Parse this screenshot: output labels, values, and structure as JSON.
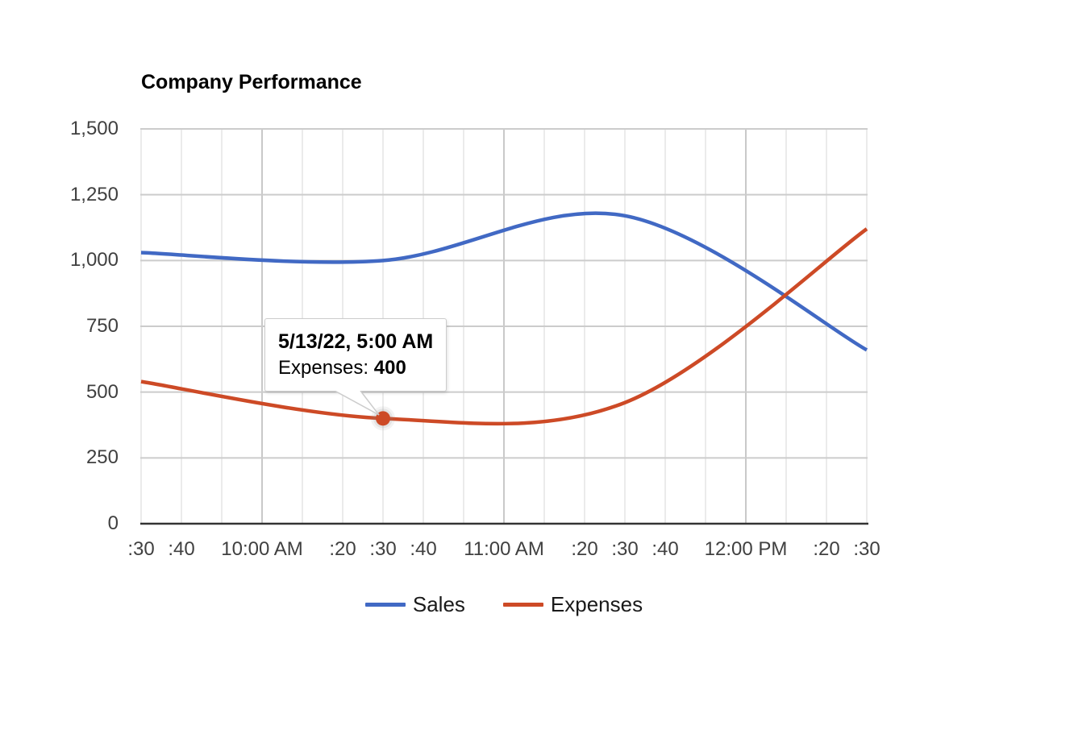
{
  "chart_data": {
    "type": "line",
    "title": "Company Performance",
    "curve": "smooth",
    "grid": true,
    "legend_position": "bottom",
    "ylim": [
      0,
      1500
    ],
    "x_axis": {
      "unit": "minutes",
      "range_minutes": [
        0,
        180
      ],
      "minor_gridline_step_minutes": 10,
      "major_gridline_minutes": [
        30,
        90,
        150
      ],
      "ticks": [
        {
          "label": ":30",
          "t": 0
        },
        {
          "label": ":40",
          "t": 10
        },
        {
          "label": "10:00 AM",
          "t": 30
        },
        {
          "label": ":20",
          "t": 50
        },
        {
          "label": ":30",
          "t": 60
        },
        {
          "label": ":40",
          "t": 70
        },
        {
          "label": "11:00 AM",
          "t": 90
        },
        {
          "label": ":20",
          "t": 110
        },
        {
          "label": ":30",
          "t": 120
        },
        {
          "label": ":40",
          "t": 130
        },
        {
          "label": "12:00 PM",
          "t": 150
        },
        {
          "label": ":20",
          "t": 170
        },
        {
          "label": ":30",
          "t": 180
        }
      ]
    },
    "y_axis": {
      "ticks": [
        {
          "label": "0",
          "v": 0
        },
        {
          "label": "250",
          "v": 250
        },
        {
          "label": "500",
          "v": 500
        },
        {
          "label": "750",
          "v": 750
        },
        {
          "label": "1,000",
          "v": 1000
        },
        {
          "label": "1,250",
          "v": 1250
        },
        {
          "label": "1,500",
          "v": 1500
        }
      ]
    },
    "series": [
      {
        "name": "Sales",
        "color": "#4169C4",
        "points": [
          {
            "t": 0,
            "v": 1030
          },
          {
            "t": 60,
            "v": 1000
          },
          {
            "t": 120,
            "v": 1170
          },
          {
            "t": 180,
            "v": 660
          }
        ]
      },
      {
        "name": "Expenses",
        "color": "#CD4A26",
        "points": [
          {
            "t": 0,
            "v": 540
          },
          {
            "t": 60,
            "v": 400
          },
          {
            "t": 120,
            "v": 460
          },
          {
            "t": 180,
            "v": 1120
          }
        ]
      }
    ],
    "selected_point": {
      "series": "Expenses",
      "series_index": 1,
      "point_index": 1,
      "value": 400
    }
  },
  "tooltip": {
    "datetime": "5/13/22, 5:00 AM",
    "series_label": "Expenses:",
    "value": "400"
  },
  "colors": {
    "gridline": "#cccccc",
    "minor_gridline": "#ebebeb",
    "major_gridline": "#c9c9c9",
    "baseline": "#333333",
    "axis_text": "#404040",
    "tooltip_border": "#cccccc",
    "background": "#ffffff"
  }
}
